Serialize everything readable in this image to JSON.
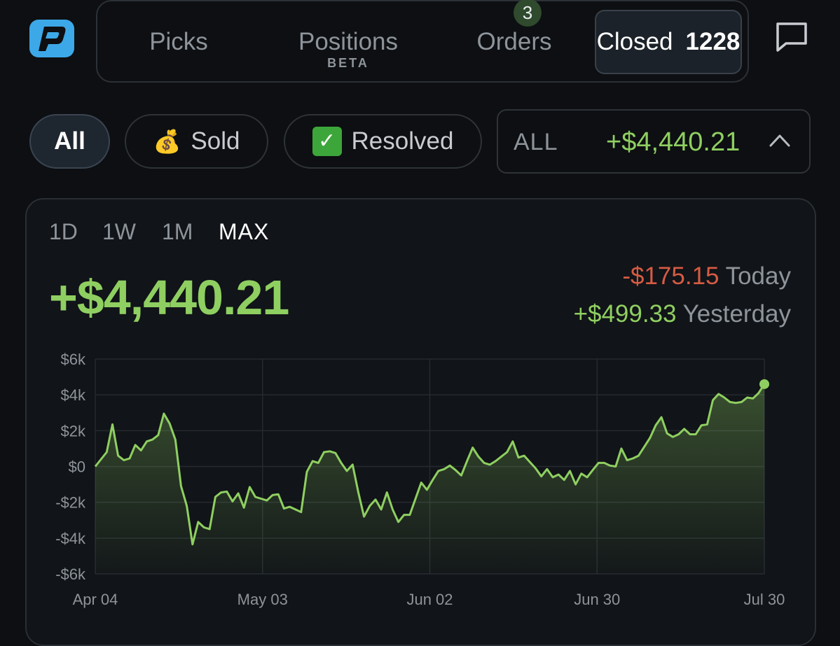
{
  "header": {
    "tabs": [
      {
        "label": "Picks"
      },
      {
        "label": "Positions",
        "sublabel": "BETA",
        "badge": "3"
      },
      {
        "label": "Orders"
      },
      {
        "label": "Closed",
        "count": "1228",
        "active": true
      }
    ]
  },
  "filters": {
    "all_label": "All",
    "sold_label": "Sold",
    "sold_icon": "money-bag-icon",
    "resolved_label": "Resolved",
    "resolved_icon": "check-box-icon",
    "range_label": "ALL",
    "range_value": "+$4,440.21"
  },
  "card": {
    "timeframes": [
      "1D",
      "1W",
      "1M",
      "MAX"
    ],
    "active_timeframe": "MAX",
    "total": "+$4,440.21",
    "today_value": "-$175.15",
    "today_label": "Today",
    "yesterday_value": "+$499.33",
    "yesterday_label": "Yesterday"
  },
  "colors": {
    "positive": "#8fcf61",
    "negative": "#d65b43",
    "background": "#0d0f12"
  },
  "chart_data": {
    "type": "area",
    "title": "",
    "xlabel": "",
    "ylabel": "",
    "x_tick_labels": [
      "Apr 04",
      "May 03",
      "Jun 02",
      "Jun 30",
      "Jul 30"
    ],
    "y_tick_labels": [
      "$6k",
      "$4k",
      "$2k",
      "$0",
      "-$2k",
      "-$4k",
      "-$6k"
    ],
    "y_ticks": [
      6000,
      4000,
      2000,
      0,
      -2000,
      -4000,
      -6000
    ],
    "ylim": [
      -6000,
      6000
    ],
    "x_range": [
      "2024-04-04",
      "2024-07-30"
    ],
    "grid": true,
    "series": [
      {
        "x": [
          "2024-04-04",
          "2024-04-06",
          "2024-04-07",
          "2024-04-08",
          "2024-04-09",
          "2024-04-10",
          "2024-04-11",
          "2024-04-12",
          "2024-04-13",
          "2024-04-14",
          "2024-04-15",
          "2024-04-16",
          "2024-04-17",
          "2024-04-18",
          "2024-04-19",
          "2024-04-20",
          "2024-04-21",
          "2024-04-22",
          "2024-04-23",
          "2024-04-24",
          "2024-04-25",
          "2024-04-26",
          "2024-04-27",
          "2024-04-28",
          "2024-04-29",
          "2024-04-30",
          "2024-05-01",
          "2024-05-02",
          "2024-05-03",
          "2024-05-04",
          "2024-05-05",
          "2024-05-06",
          "2024-05-07",
          "2024-05-08",
          "2024-05-09",
          "2024-05-10",
          "2024-05-11",
          "2024-05-12",
          "2024-05-13",
          "2024-05-14",
          "2024-05-15",
          "2024-05-16",
          "2024-05-17",
          "2024-05-18",
          "2024-05-19",
          "2024-05-20",
          "2024-05-21",
          "2024-05-22",
          "2024-05-23",
          "2024-05-24",
          "2024-05-25",
          "2024-05-26",
          "2024-05-27",
          "2024-05-28",
          "2024-05-29",
          "2024-05-30",
          "2024-05-31",
          "2024-06-01",
          "2024-06-02",
          "2024-06-03",
          "2024-06-04",
          "2024-06-05",
          "2024-06-06",
          "2024-06-07",
          "2024-06-08",
          "2024-06-09",
          "2024-06-10",
          "2024-06-11",
          "2024-06-12",
          "2024-06-13",
          "2024-06-14",
          "2024-06-15",
          "2024-06-16",
          "2024-06-17",
          "2024-06-18",
          "2024-06-19",
          "2024-06-20",
          "2024-06-21",
          "2024-06-22",
          "2024-06-23",
          "2024-06-24",
          "2024-06-25",
          "2024-06-26",
          "2024-06-27",
          "2024-06-28",
          "2024-06-29",
          "2024-06-30",
          "2024-07-01",
          "2024-07-02",
          "2024-07-03",
          "2024-07-04",
          "2024-07-05",
          "2024-07-06",
          "2024-07-07",
          "2024-07-08",
          "2024-07-09",
          "2024-07-10",
          "2024-07-11",
          "2024-07-12",
          "2024-07-13",
          "2024-07-14",
          "2024-07-15",
          "2024-07-16",
          "2024-07-17",
          "2024-07-18",
          "2024-07-19",
          "2024-07-20",
          "2024-07-21",
          "2024-07-22",
          "2024-07-23",
          "2024-07-24",
          "2024-07-25",
          "2024-07-26",
          "2024-07-27",
          "2024-07-28",
          "2024-07-29",
          "2024-07-30"
        ],
        "values": [
          0,
          800,
          2350,
          600,
          350,
          450,
          1200,
          900,
          1400,
          1500,
          1750,
          2950,
          2400,
          1500,
          -1100,
          -2200,
          -4350,
          -3100,
          -3400,
          -3500,
          -1700,
          -1450,
          -1400,
          -1950,
          -1500,
          -2300,
          -1150,
          -1700,
          -1800,
          -1900,
          -1600,
          -1550,
          -2350,
          -2250,
          -2400,
          -2550,
          -300,
          300,
          200,
          800,
          850,
          750,
          200,
          -250,
          100,
          -1450,
          -2800,
          -2200,
          -1850,
          -2400,
          -1450,
          -2400,
          -3100,
          -2700,
          -2700,
          -1800,
          -900,
          -1300,
          -750,
          -250,
          -150,
          50,
          -200,
          -500,
          300,
          1050,
          550,
          200,
          100,
          300,
          550,
          800,
          1400,
          500,
          600,
          250,
          -100,
          -550,
          -150,
          -600,
          -450,
          -750,
          -250,
          -1000,
          -400,
          -600,
          -200,
          200,
          200,
          50,
          0,
          1000,
          350,
          450,
          600,
          1100,
          1600,
          2300,
          2750,
          1850,
          1650,
          1800,
          2100,
          1800,
          1800,
          2300,
          2350,
          3700,
          4050,
          3850,
          3600,
          3550,
          3600,
          3850,
          3800,
          4100,
          4600
        ]
      }
    ],
    "last_point_marker": true
  }
}
